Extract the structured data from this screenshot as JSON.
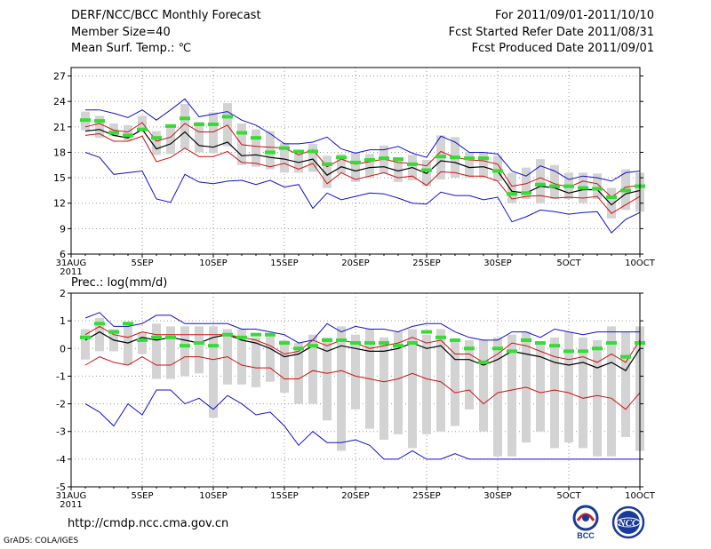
{
  "header": {
    "title": "DERF/NCC/BCC Monthly Forecast",
    "member": "Member Size=40",
    "variable": "Mean Surf. Temp.: ℃",
    "period": "For 2011/09/01-2011/10/10",
    "started": "Fcst Started Refer Date 2011/08/31",
    "produced": "Fcst Produced Date 2011/09/01"
  },
  "footer": {
    "url": "http://cmdp.ncc.cma.gov.cn",
    "grads": "GrADS: COLA/IGES",
    "logo_bcc": "BCC",
    "logo_ncc": "NCC"
  },
  "colors": {
    "envelope": "#1010d0",
    "spread": "#d01010",
    "mean": "#000000",
    "box": "#d3d3d3",
    "median": "#33dd33",
    "grid": "#9a9a9a"
  },
  "chart_data": [
    {
      "type": "line",
      "name": "temperature",
      "ylabel": "Mean Surf. Temp.: ℃",
      "ylim": [
        6,
        28
      ],
      "yticks": [
        6,
        9,
        12,
        15,
        18,
        21,
        24,
        27
      ],
      "x": [
        1,
        2,
        3,
        4,
        5,
        6,
        7,
        8,
        9,
        10,
        11,
        12,
        13,
        14,
        15,
        16,
        17,
        18,
        19,
        20,
        21,
        22,
        23,
        24,
        25,
        26,
        27,
        28,
        29,
        30,
        31,
        32,
        33,
        34,
        35,
        36,
        37,
        38,
        39,
        40
      ],
      "xticks": [
        {
          "day": 0,
          "label": "31AUG",
          "sub": "2011"
        },
        {
          "day": 5,
          "label": "5SEP"
        },
        {
          "day": 10,
          "label": "10SEP"
        },
        {
          "day": 15,
          "label": "15SEP"
        },
        {
          "day": 20,
          "label": "20SEP"
        },
        {
          "day": 25,
          "label": "25SEP"
        },
        {
          "day": 30,
          "label": "30SEP"
        },
        {
          "day": 35,
          "label": "5OCT"
        },
        {
          "day": 40,
          "label": "10OCT"
        }
      ],
      "series": [
        {
          "name": "max",
          "color_key": "envelope",
          "values": [
            23.0,
            23.0,
            22.6,
            22.1,
            23.0,
            21.8,
            23.0,
            24.3,
            22.2,
            22.5,
            22.8,
            21.8,
            21.2,
            20.2,
            19.0,
            19.0,
            19.2,
            19.8,
            18.4,
            17.9,
            18.3,
            18.3,
            18.7,
            17.9,
            17.4,
            19.9,
            19.2,
            18.0,
            18.0,
            17.8,
            15.8,
            15.2,
            16.4,
            15.8,
            14.8,
            15.2,
            15.0,
            14.6,
            15.6,
            15.8
          ]
        },
        {
          "name": "upper",
          "color_key": "spread",
          "values": [
            21.0,
            21.4,
            20.6,
            20.4,
            21.5,
            19.3,
            19.8,
            21.4,
            20.4,
            20.4,
            21.2,
            18.9,
            18.7,
            18.6,
            18.5,
            17.7,
            18.3,
            16.3,
            17.2,
            16.6,
            16.9,
            17.2,
            16.8,
            16.7,
            16.4,
            18.1,
            17.4,
            17.1,
            17.0,
            16.6,
            14.0,
            14.3,
            15.0,
            14.3,
            13.9,
            14.6,
            14.3,
            12.7,
            13.9,
            14.1
          ]
        },
        {
          "name": "mean",
          "color_key": "mean",
          "values": [
            20.5,
            20.7,
            20.0,
            19.7,
            20.7,
            18.4,
            19.0,
            20.4,
            18.8,
            18.6,
            19.2,
            17.6,
            17.7,
            17.4,
            17.2,
            16.8,
            17.2,
            15.3,
            16.3,
            15.8,
            16.2,
            16.3,
            15.8,
            16.2,
            15.5,
            17.0,
            16.8,
            16.2,
            16.3,
            15.8,
            13.4,
            13.2,
            14.0,
            13.8,
            13.2,
            13.6,
            13.6,
            11.8,
            13.1,
            13.5
          ]
        },
        {
          "name": "lower",
          "color_key": "spread",
          "values": [
            20.0,
            20.2,
            19.3,
            19.3,
            19.9,
            16.9,
            17.4,
            18.5,
            17.5,
            17.5,
            18.1,
            16.8,
            16.7,
            16.3,
            16.7,
            16.0,
            16.7,
            14.3,
            15.6,
            14.8,
            15.2,
            15.6,
            15.0,
            15.2,
            14.1,
            15.7,
            15.6,
            15.2,
            15.2,
            14.6,
            12.5,
            12.8,
            12.9,
            12.6,
            12.7,
            12.6,
            12.8,
            10.8,
            11.8,
            12.8
          ]
        },
        {
          "name": "min",
          "color_key": "envelope",
          "values": [
            18.0,
            17.4,
            15.4,
            15.6,
            15.8,
            12.5,
            12.1,
            15.4,
            14.5,
            14.3,
            14.6,
            14.7,
            14.2,
            14.7,
            13.9,
            14.2,
            11.4,
            13.2,
            12.4,
            12.8,
            13.2,
            13.1,
            12.6,
            12.0,
            11.9,
            13.3,
            12.9,
            12.9,
            12.4,
            12.7,
            9.8,
            10.4,
            11.2,
            11.0,
            10.7,
            10.9,
            11.0,
            8.5,
            10.1,
            10.9
          ]
        }
      ],
      "box_ranges": [
        [
          20.6,
          22.8
        ],
        [
          19.7,
          22.3
        ],
        [
          19.9,
          21.4
        ],
        [
          19.4,
          21.2
        ],
        [
          20.5,
          22.3
        ],
        [
          17.7,
          20.5
        ],
        [
          17.8,
          21.3
        ],
        [
          18.4,
          23.7
        ],
        [
          18.0,
          21.6
        ],
        [
          17.9,
          22.7
        ],
        [
          18.7,
          23.8
        ],
        [
          16.5,
          21.4
        ],
        [
          16.3,
          20.7
        ],
        [
          16.0,
          20.5
        ],
        [
          15.6,
          19.1
        ],
        [
          15.6,
          18.1
        ],
        [
          15.7,
          19.0
        ],
        [
          13.8,
          17.6
        ],
        [
          15.5,
          17.8
        ],
        [
          14.5,
          18.0
        ],
        [
          15.0,
          17.8
        ],
        [
          15.5,
          18.8
        ],
        [
          14.5,
          17.4
        ],
        [
          14.7,
          17.7
        ],
        [
          14.0,
          17.1
        ],
        [
          14.8,
          20.0
        ],
        [
          15.0,
          19.8
        ],
        [
          15.0,
          18.0
        ],
        [
          15.0,
          18.0
        ],
        [
          14.6,
          17.6
        ],
        [
          12.0,
          15.6
        ],
        [
          12.5,
          16.2
        ],
        [
          12.0,
          17.2
        ],
        [
          12.5,
          16.5
        ],
        [
          12.5,
          15.6
        ],
        [
          12.0,
          15.6
        ],
        [
          12.5,
          15.5
        ],
        [
          10.2,
          13.8
        ],
        [
          11.2,
          16.0
        ],
        [
          11.0,
          15.6
        ]
      ],
      "medians": [
        21.8,
        21.7,
        20.3,
        20.0,
        20.7,
        19.7,
        21.1,
        22.0,
        21.3,
        21.3,
        22.2,
        20.3,
        19.7,
        18.0,
        18.5,
        18.1,
        18.1,
        16.6,
        17.4,
        16.8,
        17.1,
        17.3,
        17.2,
        16.6,
        15.9,
        17.5,
        17.4,
        17.3,
        17.3,
        15.8,
        13.1,
        13.2,
        14.2,
        14.0,
        14.0,
        13.8,
        13.7,
        12.7,
        13.5,
        14.0
      ]
    },
    {
      "type": "line",
      "name": "precipitation",
      "ylabel": "Prec.: log(mm/d)",
      "ylim": [
        -5,
        2
      ],
      "yticks": [
        -5,
        -4,
        -3,
        -2,
        -1,
        0,
        1,
        2
      ],
      "x": [
        1,
        2,
        3,
        4,
        5,
        6,
        7,
        8,
        9,
        10,
        11,
        12,
        13,
        14,
        15,
        16,
        17,
        18,
        19,
        20,
        21,
        22,
        23,
        24,
        25,
        26,
        27,
        28,
        29,
        30,
        31,
        32,
        33,
        34,
        35,
        36,
        37,
        38,
        39,
        40
      ],
      "xticks": [
        {
          "day": 0,
          "label": "31AUG",
          "sub": "2011"
        },
        {
          "day": 5,
          "label": "5SEP"
        },
        {
          "day": 10,
          "label": "10SEP"
        },
        {
          "day": 15,
          "label": "15SEP"
        },
        {
          "day": 20,
          "label": "20SEP"
        },
        {
          "day": 25,
          "label": "25SEP"
        },
        {
          "day": 30,
          "label": "30SEP"
        },
        {
          "day": 35,
          "label": "5OCT"
        },
        {
          "day": 40,
          "label": "10OCT"
        }
      ],
      "series": [
        {
          "name": "max",
          "color_key": "envelope",
          "values": [
            1.1,
            1.3,
            0.8,
            0.8,
            0.9,
            1.2,
            1.2,
            0.9,
            0.9,
            0.9,
            0.9,
            0.7,
            0.7,
            0.6,
            0.5,
            0.2,
            0.3,
            0.9,
            0.6,
            0.8,
            0.7,
            0.7,
            0.6,
            0.8,
            0.9,
            0.9,
            0.6,
            0.4,
            0.3,
            0.3,
            0.6,
            0.6,
            0.4,
            0.7,
            0.6,
            0.5,
            0.6,
            0.6,
            0.6,
            0.6
          ]
        },
        {
          "name": "upper",
          "color_key": "spread",
          "values": [
            0.5,
            0.8,
            0.5,
            0.4,
            0.6,
            0.5,
            0.5,
            0.5,
            0.5,
            0.5,
            0.5,
            0.4,
            0.3,
            0.1,
            -0.2,
            -0.1,
            0.3,
            0.1,
            0.3,
            0.2,
            0.0,
            0.1,
            0.2,
            0.4,
            0.2,
            0.3,
            -0.2,
            -0.2,
            -0.5,
            -0.2,
            0.2,
            0.1,
            -0.1,
            -0.3,
            -0.4,
            -0.3,
            -0.5,
            -0.2,
            -0.5,
            0.3
          ]
        },
        {
          "name": "mean",
          "color_key": "mean",
          "values": [
            0.3,
            0.6,
            0.3,
            0.2,
            0.4,
            0.3,
            0.4,
            0.3,
            0.2,
            0.4,
            0.5,
            0.3,
            0.2,
            0.0,
            -0.3,
            -0.2,
            0.1,
            -0.1,
            0.1,
            0.0,
            -0.1,
            -0.1,
            0.0,
            0.2,
            0.0,
            0.1,
            -0.4,
            -0.4,
            -0.6,
            -0.4,
            -0.1,
            -0.2,
            -0.3,
            -0.5,
            -0.6,
            -0.5,
            -0.7,
            -0.5,
            -0.8,
            0.0
          ]
        },
        {
          "name": "lower",
          "color_key": "spread",
          "values": [
            -0.6,
            -0.3,
            -0.5,
            -0.6,
            -0.3,
            -0.6,
            -0.6,
            -0.3,
            -0.3,
            -0.4,
            -0.3,
            -0.6,
            -0.7,
            -0.7,
            -1.1,
            -1.1,
            -0.8,
            -0.9,
            -0.8,
            -1.0,
            -1.1,
            -1.2,
            -1.1,
            -0.9,
            -1.1,
            -1.2,
            -1.6,
            -1.5,
            -2.0,
            -1.6,
            -1.5,
            -1.4,
            -1.6,
            -1.5,
            -1.6,
            -1.8,
            -1.7,
            -1.8,
            -2.2,
            -1.6
          ]
        },
        {
          "name": "min",
          "color_key": "envelope",
          "values": [
            -2.0,
            -2.3,
            -2.8,
            -2.0,
            -2.4,
            -1.5,
            -1.5,
            -2.0,
            -1.8,
            -2.2,
            -1.7,
            -2.0,
            -2.4,
            -2.3,
            -2.8,
            -3.5,
            -3.0,
            -3.4,
            -3.4,
            -3.3,
            -3.5,
            -4.0,
            -4.0,
            -3.7,
            -4.0,
            -4.0,
            -3.8,
            -4.0,
            -4.0,
            -4.0,
            -4.0,
            -4.0,
            -4.0,
            -4.0,
            -4.0,
            -4.0,
            -4.0,
            -4.0,
            -4.0,
            -4.0
          ]
        }
      ],
      "box_ranges": [
        [
          -0.4,
          0.7
        ],
        [
          -0.1,
          1.1
        ],
        [
          -0.1,
          0.7
        ],
        [
          -0.6,
          0.8
        ],
        [
          -0.2,
          0.6
        ],
        [
          -1.1,
          0.9
        ],
        [
          -1.1,
          0.8
        ],
        [
          -1.0,
          0.8
        ],
        [
          -0.9,
          0.8
        ],
        [
          -2.5,
          0.8
        ],
        [
          -1.3,
          0.7
        ],
        [
          -1.3,
          0.7
        ],
        [
          -1.4,
          0.4
        ],
        [
          -1.2,
          0.5
        ],
        [
          -1.6,
          0.3
        ],
        [
          -2.0,
          0.2
        ],
        [
          -2.0,
          0.5
        ],
        [
          -2.6,
          0.4
        ],
        [
          -3.7,
          0.8
        ],
        [
          -2.2,
          0.5
        ],
        [
          -2.9,
          0.7
        ],
        [
          -3.3,
          0.4
        ],
        [
          -3.1,
          0.6
        ],
        [
          -3.6,
          0.7
        ],
        [
          -3.1,
          0.5
        ],
        [
          -3.0,
          0.7
        ],
        [
          -2.8,
          0.3
        ],
        [
          -2.2,
          0.3
        ],
        [
          -3.0,
          0.3
        ],
        [
          -3.9,
          0.4
        ],
        [
          -3.9,
          0.5
        ],
        [
          -3.4,
          0.6
        ],
        [
          -3.0,
          0.2
        ],
        [
          -3.6,
          0.4
        ],
        [
          -3.4,
          0.6
        ],
        [
          -3.6,
          0.4
        ],
        [
          -3.9,
          0.3
        ],
        [
          -3.9,
          0.8
        ],
        [
          -3.2,
          0.6
        ],
        [
          -3.7,
          0.8
        ]
      ],
      "medians": [
        0.4,
        0.9,
        0.6,
        0.9,
        0.3,
        0.4,
        0.4,
        0.1,
        0.2,
        0.1,
        0.5,
        0.4,
        0.5,
        0.5,
        0.2,
        0.0,
        0.1,
        0.3,
        0.3,
        0.2,
        0.2,
        0.2,
        0.1,
        0.2,
        0.6,
        0.4,
        0.3,
        0.0,
        -0.5,
        0.0,
        -0.1,
        0.3,
        0.2,
        0.1,
        -0.1,
        -0.1,
        0.0,
        0.2,
        -0.3,
        0.2
      ]
    }
  ]
}
